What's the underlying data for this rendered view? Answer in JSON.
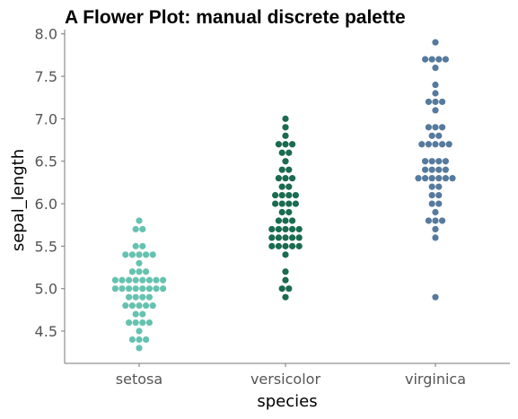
{
  "chart_data": {
    "type": "scatter",
    "style": "beeswarm",
    "title": "A Flower Plot: manual discrete palette",
    "xlabel": "species",
    "ylabel": "sepal_length",
    "categories": [
      "setosa",
      "versicolor",
      "virginica"
    ],
    "ylim": [
      4.12,
      8.05
    ],
    "yticks": [
      4.5,
      5.0,
      5.5,
      6.0,
      6.5,
      7.0,
      7.5,
      8.0
    ],
    "ytick_labels": [
      "4.5",
      "5.0",
      "5.5",
      "6.0",
      "6.5",
      "7.0",
      "7.5",
      "8.0"
    ],
    "grid": false,
    "legend": "none",
    "colors": {
      "setosa": "#66c2b0",
      "versicolor": "#1a6b50",
      "virginica": "#557a9e"
    },
    "series": [
      {
        "category": "setosa",
        "values": [
          4.3,
          4.4,
          4.4,
          4.4,
          4.5,
          4.6,
          4.6,
          4.6,
          4.6,
          4.7,
          4.7,
          4.8,
          4.8,
          4.8,
          4.8,
          4.8,
          4.9,
          4.9,
          4.9,
          4.9,
          5.0,
          5.0,
          5.0,
          5.0,
          5.0,
          5.0,
          5.0,
          5.0,
          5.1,
          5.1,
          5.1,
          5.1,
          5.1,
          5.1,
          5.1,
          5.1,
          5.2,
          5.2,
          5.2,
          5.3,
          5.4,
          5.4,
          5.4,
          5.4,
          5.4,
          5.5,
          5.5,
          5.7,
          5.7,
          5.8
        ]
      },
      {
        "category": "versicolor",
        "values": [
          4.9,
          5.0,
          5.0,
          5.1,
          5.2,
          5.4,
          5.5,
          5.5,
          5.5,
          5.5,
          5.5,
          5.6,
          5.6,
          5.6,
          5.6,
          5.6,
          5.7,
          5.7,
          5.7,
          5.7,
          5.7,
          5.8,
          5.8,
          5.8,
          5.9,
          5.9,
          6.0,
          6.0,
          6.0,
          6.0,
          6.1,
          6.1,
          6.1,
          6.1,
          6.2,
          6.2,
          6.3,
          6.3,
          6.3,
          6.4,
          6.4,
          6.5,
          6.6,
          6.6,
          6.7,
          6.7,
          6.7,
          6.8,
          6.9,
          7.0
        ]
      },
      {
        "category": "virginica",
        "values": [
          4.9,
          5.6,
          5.7,
          5.8,
          5.8,
          5.8,
          5.9,
          6.0,
          6.0,
          6.1,
          6.1,
          6.2,
          6.2,
          6.3,
          6.3,
          6.3,
          6.3,
          6.3,
          6.3,
          6.4,
          6.4,
          6.4,
          6.4,
          6.5,
          6.5,
          6.5,
          6.5,
          6.7,
          6.7,
          6.7,
          6.7,
          6.7,
          6.8,
          6.8,
          6.9,
          6.9,
          6.9,
          7.1,
          7.2,
          7.2,
          7.2,
          7.3,
          7.4,
          7.6,
          7.7,
          7.7,
          7.7,
          7.7,
          7.9
        ]
      }
    ]
  }
}
